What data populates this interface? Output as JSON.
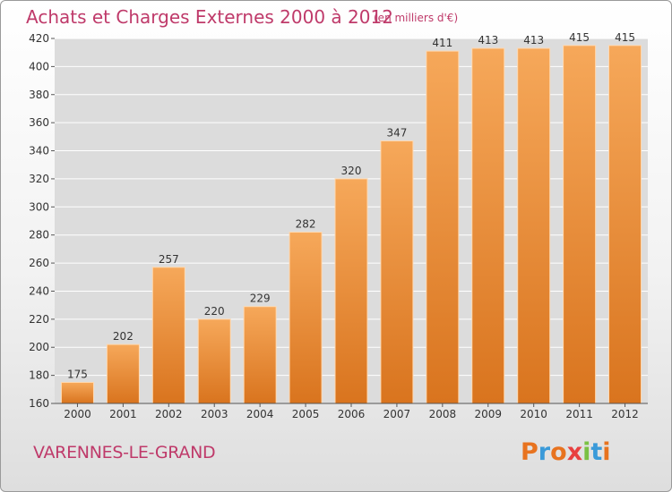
{
  "header": {
    "title": "Achats et Charges Externes 2000 à 2012",
    "unit_note": "(en milliers d'€)"
  },
  "footer": {
    "place_name": "VARENNES-LE-GRAND",
    "logo_text": "Proxiti",
    "logo_colors": [
      "#e8731f",
      "#3a9ad9",
      "#e8731f",
      "#e84040",
      "#7ac143",
      "#3a9ad9",
      "#e8731f"
    ]
  },
  "chart_data": {
    "type": "bar",
    "title": "Achats et Charges Externes 2000 à 2012",
    "subtitle": "(en milliers d'€)",
    "categories": [
      "2000",
      "2001",
      "2002",
      "2003",
      "2004",
      "2005",
      "2006",
      "2007",
      "2008",
      "2009",
      "2010",
      "2011",
      "2012"
    ],
    "values": [
      175,
      202,
      257,
      220,
      229,
      282,
      320,
      347,
      411,
      413,
      413,
      415,
      415
    ],
    "ylim": [
      160,
      420
    ],
    "yticks": [
      160,
      180,
      200,
      220,
      240,
      260,
      280,
      300,
      320,
      340,
      360,
      380,
      400,
      420
    ],
    "grid": true,
    "legend": "none",
    "colors": {
      "bar_light": "#f6a85a",
      "bar_dark": "#d9741e",
      "bar_edge": "#ffd9b0",
      "plot_bg": "#dcdcdc",
      "grid": "#ffffff",
      "text": "#333333"
    }
  }
}
